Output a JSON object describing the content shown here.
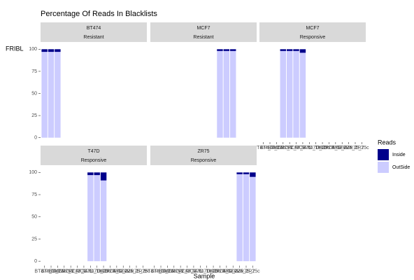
{
  "chart_data": {
    "type": "bar",
    "stacked": true,
    "title": "Percentage Of Reads In Blacklists",
    "x_label": "Sample",
    "y_label": "FRIBL",
    "categories": [
      "BT474_1",
      "BT474_2",
      "BT474c",
      "MCF7_1",
      "MCF7_2",
      "MCF7_3",
      "MCF7c",
      "T47D_1",
      "T47D_2",
      "T47Dc",
      "MCF7R_1",
      "MCF7R_2",
      "MCF7Rc",
      "ZR75_1",
      "ZR75_2",
      "ZR75c"
    ],
    "ylim": [
      0,
      100
    ],
    "yticks": [
      0,
      25,
      50,
      75,
      100
    ],
    "legend_title": "Reads",
    "series": [
      {
        "name": "Inside",
        "color": "#00008B"
      },
      {
        "name": "OutSide",
        "color": "#CCCCFF"
      }
    ],
    "facets": [
      {
        "strip": [
          "BT474",
          "Resistant"
        ],
        "values": [
          [
            3,
            3,
            3,
            null,
            null,
            null,
            null,
            null,
            null,
            null,
            null,
            null,
            null,
            null,
            null,
            null
          ],
          [
            97,
            97,
            97,
            null,
            null,
            null,
            null,
            null,
            null,
            null,
            null,
            null,
            null,
            null,
            null,
            null
          ]
        ]
      },
      {
        "strip": [
          "MCF7",
          "Resistant"
        ],
        "values": [
          [
            null,
            null,
            null,
            null,
            null,
            null,
            null,
            null,
            null,
            null,
            2,
            2,
            2,
            null,
            null,
            null
          ],
          [
            null,
            null,
            null,
            null,
            null,
            null,
            null,
            null,
            null,
            null,
            98,
            98,
            98,
            null,
            null,
            null
          ]
        ]
      },
      {
        "strip": [
          "MCF7",
          "Responsive"
        ],
        "values": [
          [
            null,
            null,
            null,
            2,
            2,
            2,
            4,
            null,
            null,
            null,
            null,
            null,
            null,
            null,
            null,
            null
          ],
          [
            null,
            null,
            null,
            98,
            98,
            98,
            96,
            null,
            null,
            null,
            null,
            null,
            null,
            null,
            null,
            null
          ]
        ]
      },
      {
        "strip": [
          "T47D",
          "Responsive"
        ],
        "values": [
          [
            null,
            null,
            null,
            null,
            null,
            null,
            null,
            3,
            3,
            9,
            null,
            null,
            null,
            null,
            null,
            null
          ],
          [
            null,
            null,
            null,
            null,
            null,
            null,
            null,
            97,
            97,
            91,
            null,
            null,
            null,
            null,
            null,
            null
          ]
        ]
      },
      {
        "strip": [
          "ZR75",
          "Responsive"
        ],
        "values": [
          [
            null,
            null,
            null,
            null,
            null,
            null,
            null,
            null,
            null,
            null,
            null,
            null,
            null,
            2,
            2,
            5
          ],
          [
            null,
            null,
            null,
            null,
            null,
            null,
            null,
            null,
            null,
            null,
            null,
            null,
            null,
            98,
            98,
            95
          ]
        ]
      }
    ]
  }
}
